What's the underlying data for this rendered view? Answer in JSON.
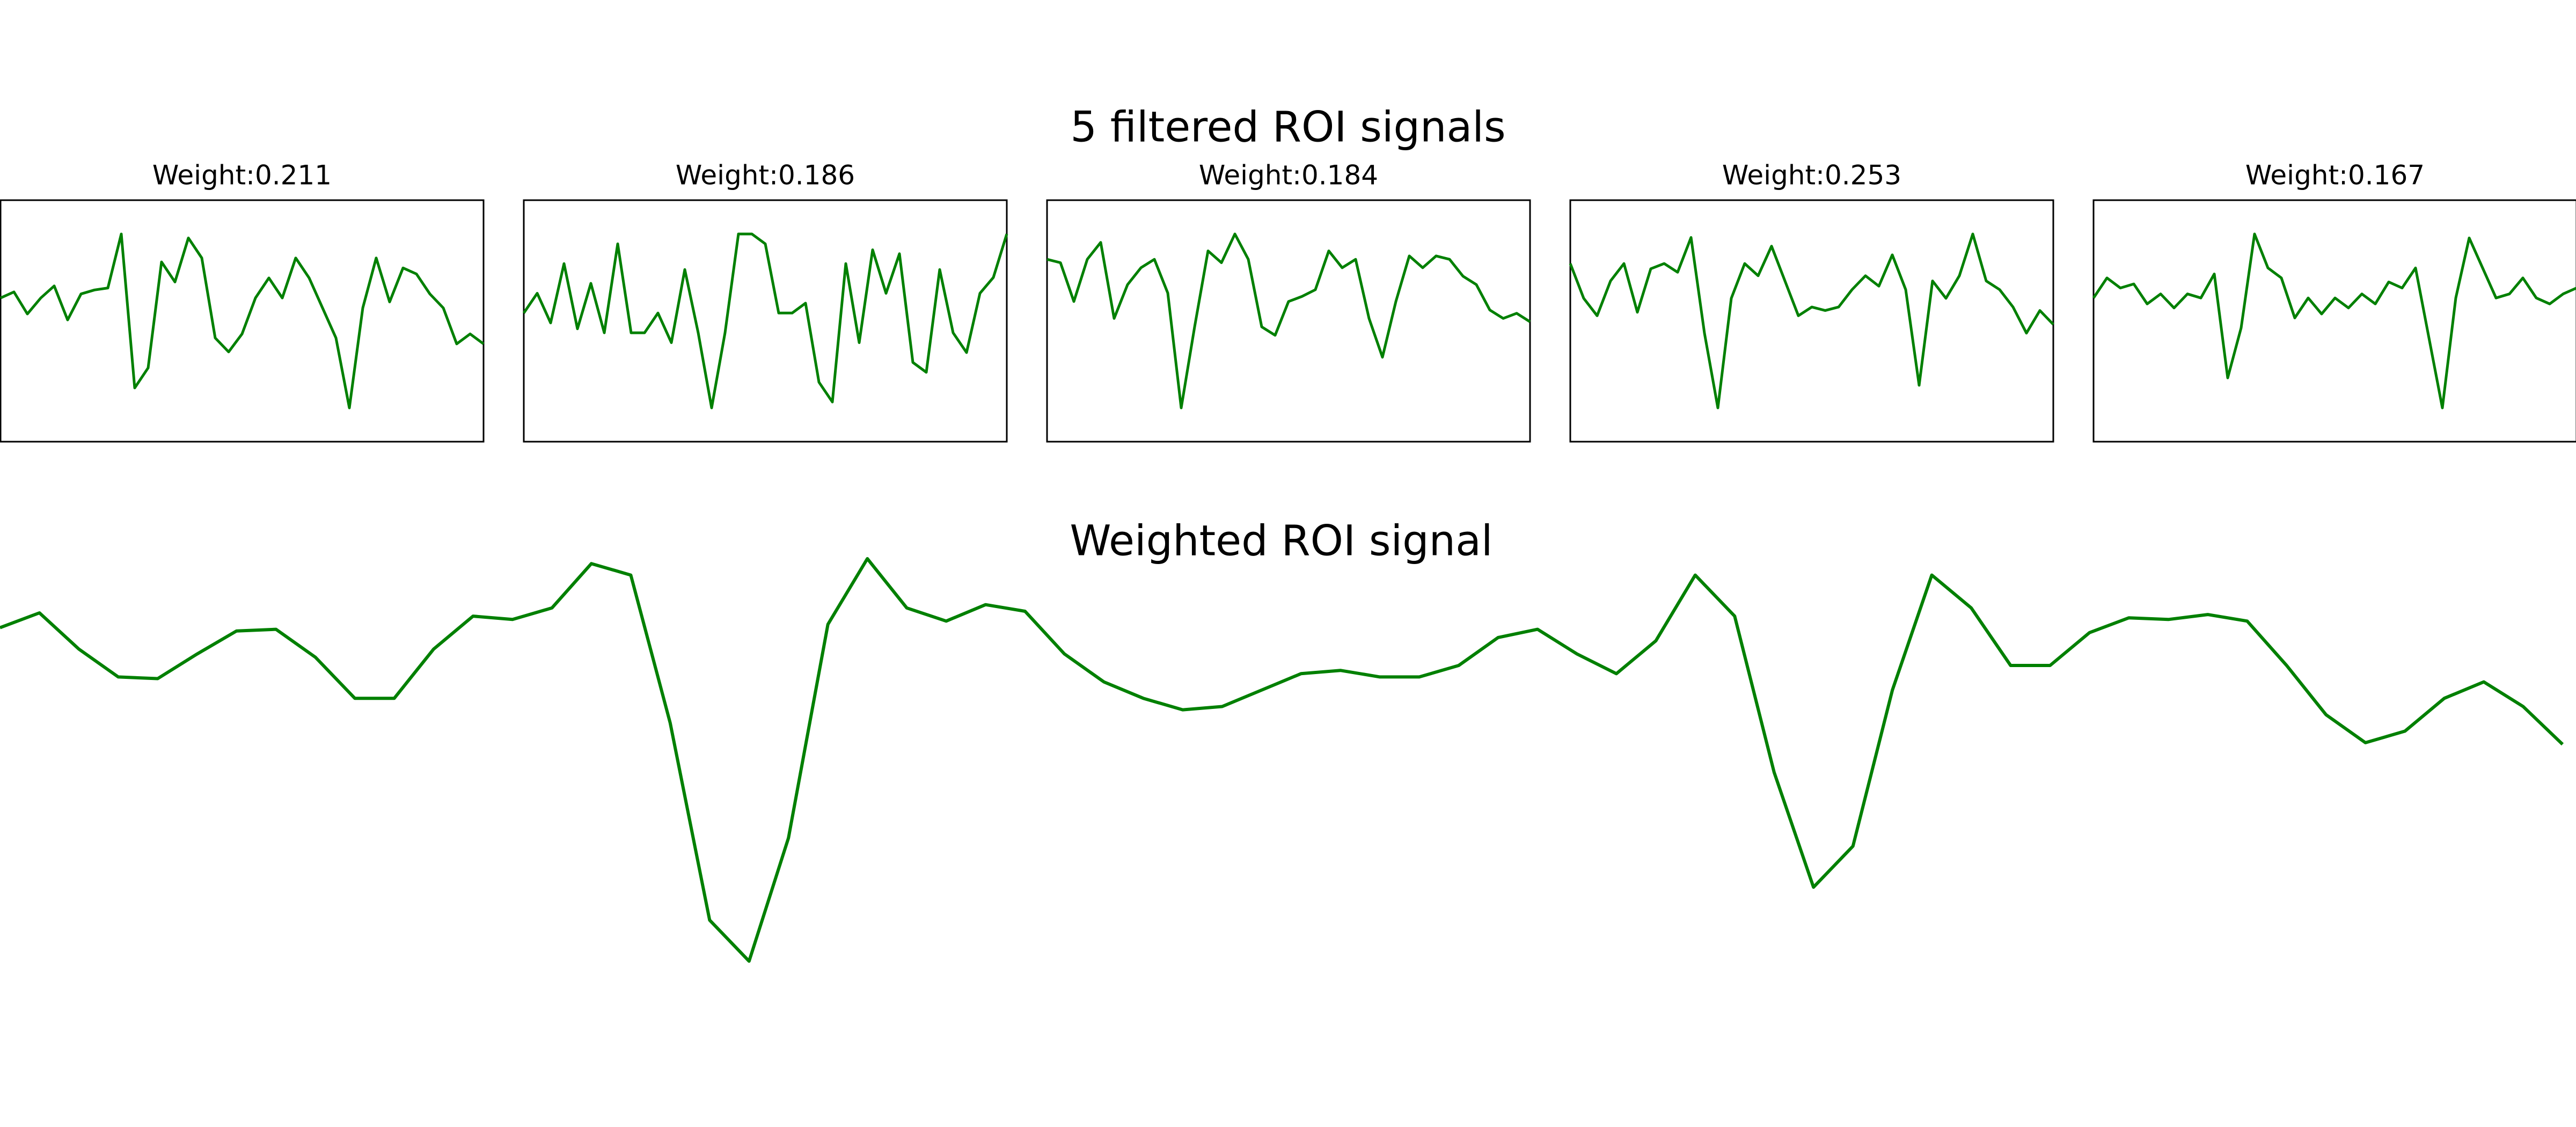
{
  "suptitle": "5 filtered ROI signals",
  "chart_data": [
    {
      "type": "line",
      "title": "Weight:0.211",
      "color": "green",
      "frame": true,
      "values": [
        0.3,
        0.36,
        0.14,
        0.3,
        0.42,
        0.08,
        0.34,
        0.38,
        0.4,
        0.94,
        -0.6,
        -0.4,
        0.66,
        0.46,
        0.9,
        0.7,
        -0.1,
        -0.24,
        -0.06,
        0.3,
        0.5,
        0.3,
        0.7,
        0.5,
        0.2,
        -0.1,
        -0.8,
        0.2,
        0.7,
        0.26,
        0.6,
        0.54,
        0.34,
        0.2,
        -0.16,
        -0.06,
        -0.16
      ]
    },
    {
      "type": "line",
      "title": "Weight:0.186",
      "color": "green",
      "frame": true,
      "values": [
        0.1,
        0.3,
        0.0,
        0.6,
        -0.06,
        0.4,
        -0.1,
        0.8,
        -0.1,
        -0.1,
        0.1,
        -0.2,
        0.54,
        -0.1,
        -0.86,
        -0.1,
        0.9,
        0.9,
        0.8,
        0.1,
        0.1,
        0.2,
        -0.6,
        -0.8,
        0.6,
        -0.2,
        0.74,
        0.3,
        0.7,
        -0.4,
        -0.5,
        0.54,
        -0.1,
        -0.3,
        0.3,
        0.46,
        0.9
      ]
    },
    {
      "type": "line",
      "title": "Weight:0.184",
      "color": "green",
      "frame": true,
      "values": [
        0.7,
        0.66,
        0.2,
        0.7,
        0.9,
        0.0,
        0.4,
        0.6,
        0.7,
        0.3,
        -1.06,
        -0.1,
        0.8,
        0.66,
        1.0,
        0.7,
        -0.1,
        -0.2,
        0.2,
        0.26,
        0.34,
        0.8,
        0.6,
        0.7,
        0.0,
        -0.46,
        0.2,
        0.74,
        0.6,
        0.74,
        0.7,
        0.5,
        0.4,
        0.1,
        0.0,
        0.06,
        -0.04
      ]
    },
    {
      "type": "line",
      "title": "Weight:0.253",
      "color": "green",
      "frame": true,
      "values": [
        0.6,
        0.2,
        0.0,
        0.4,
        0.6,
        0.04,
        0.54,
        0.6,
        0.5,
        0.9,
        -0.2,
        -1.06,
        0.2,
        0.6,
        0.46,
        0.8,
        0.4,
        0.0,
        0.1,
        0.06,
        0.1,
        0.3,
        0.46,
        0.34,
        0.7,
        0.3,
        -0.8,
        0.4,
        0.2,
        0.46,
        0.94,
        0.4,
        0.3,
        0.1,
        -0.2,
        0.06,
        -0.1
      ]
    },
    {
      "type": "line",
      "title": "Weight:0.167",
      "color": "green",
      "frame": true,
      "values": [
        0.3,
        0.5,
        0.4,
        0.44,
        0.24,
        0.34,
        0.2,
        0.34,
        0.3,
        0.54,
        -0.5,
        0.0,
        0.94,
        0.6,
        0.5,
        0.1,
        0.3,
        0.14,
        0.3,
        0.2,
        0.34,
        0.24,
        0.46,
        0.4,
        0.6,
        -0.1,
        -0.8,
        0.3,
        0.9,
        0.6,
        0.3,
        0.34,
        0.5,
        0.3,
        0.24,
        0.34,
        0.4
      ]
    },
    {
      "type": "line",
      "title": "Weighted ROI signal",
      "color": "green",
      "frame": false,
      "values": [
        0.68,
        0.77,
        0.55,
        0.38,
        0.37,
        0.52,
        0.66,
        0.67,
        0.5,
        0.25,
        0.25,
        0.55,
        0.75,
        0.73,
        0.8,
        1.07,
        1.0,
        0.1,
        -1.1,
        -1.35,
        -0.6,
        0.7,
        1.1,
        0.8,
        0.72,
        0.82,
        0.78,
        0.52,
        0.35,
        0.25,
        0.18,
        0.2,
        0.3,
        0.4,
        0.42,
        0.38,
        0.38,
        0.45,
        0.62,
        0.67,
        0.52,
        0.4,
        0.6,
        1.0,
        0.75,
        -0.2,
        -0.9,
        -0.65,
        0.3,
        1.0,
        0.8,
        0.45,
        0.45,
        0.65,
        0.74,
        0.73,
        0.76,
        0.72,
        0.45,
        0.15,
        -0.02,
        0.05,
        0.25,
        0.35,
        0.2,
        -0.03
      ]
    }
  ]
}
